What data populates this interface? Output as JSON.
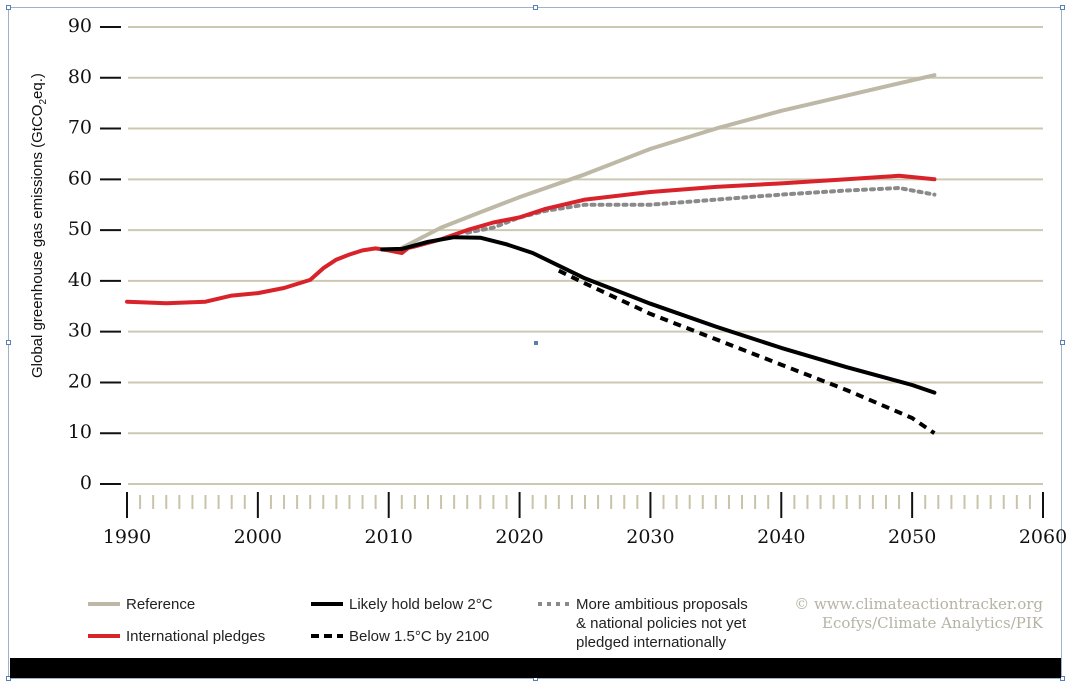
{
  "chart_data": {
    "type": "line",
    "ylabel_parts": [
      "Global greenhouse gas emissions (GtCO",
      "2",
      "eq.)"
    ],
    "ylim": [
      0,
      90
    ],
    "xlim": [
      1990,
      2060
    ],
    "yticks": [
      0,
      10,
      20,
      30,
      40,
      50,
      60,
      70,
      80,
      90
    ],
    "xticks": [
      1990,
      2000,
      2010,
      2020,
      2030,
      2040,
      2050,
      2060
    ],
    "grid": true,
    "series": [
      {
        "name": "Reference",
        "color": "#bdb9a6",
        "style": "solid",
        "x": [
          2011,
          2014,
          2017,
          2020,
          2025,
          2030,
          2035,
          2040,
          2045,
          2050,
          2051.7
        ],
        "y": [
          46.5,
          50.5,
          53.5,
          56.5,
          61,
          66,
          70,
          73.5,
          76.5,
          79.5,
          80.5
        ]
      },
      {
        "name": "International pledges",
        "color": "#d8232a",
        "style": "solid",
        "x": [
          1990,
          1993,
          1996,
          1998,
          2000,
          2002,
          2004,
          2005,
          2006,
          2007,
          2008,
          2009,
          2010,
          2011,
          2011.5,
          2012,
          2014,
          2016,
          2018,
          2020,
          2022,
          2025,
          2030,
          2035,
          2040,
          2045,
          2049,
          2051.7
        ],
        "y": [
          35.9,
          35.6,
          35.9,
          37.1,
          37.6,
          38.6,
          40.2,
          42.5,
          44.2,
          45.2,
          46,
          46.4,
          46,
          45.5,
          46.5,
          46.8,
          48.2,
          50,
          51.5,
          52.5,
          54.2,
          56,
          57.5,
          58.5,
          59.2,
          60,
          60.7,
          60
        ]
      },
      {
        "name": "Likely hold below 2°C",
        "color": "#000000",
        "style": "solid",
        "x": [
          2009.5,
          2011,
          2013,
          2015,
          2017,
          2019,
          2021,
          2023,
          2025,
          2030,
          2035,
          2040,
          2045,
          2050,
          2051.7
        ],
        "y": [
          46.2,
          46.3,
          47.7,
          48.6,
          48.5,
          47.2,
          45.5,
          43,
          40.5,
          35.5,
          31,
          26.8,
          23,
          19.5,
          18
        ]
      },
      {
        "name": "Below 1.5°C by 2100",
        "color": "#000000",
        "style": "dashed",
        "x": [
          2023,
          2025,
          2030,
          2035,
          2040,
          2045,
          2050,
          2051.7
        ],
        "y": [
          42,
          39.5,
          33.5,
          28.5,
          23.5,
          18.5,
          13,
          10
        ]
      },
      {
        "name": "More ambitious proposals & national policies not yet pledged internationally",
        "color": "#8a8a8a",
        "style": "dotted",
        "x": [
          2016,
          2018,
          2020,
          2022,
          2025,
          2030,
          2035,
          2040,
          2045,
          2049,
          2051.7
        ],
        "y": [
          49.5,
          50.5,
          52.5,
          53.8,
          55,
          55,
          56,
          57,
          57.8,
          58.3,
          57
        ]
      }
    ],
    "legend": {
      "placement": "bottom",
      "entries": [
        {
          "lines": [
            "Reference"
          ]
        },
        {
          "lines": [
            "International pledges"
          ]
        },
        {
          "lines": [
            "Likely hold below 2°C"
          ]
        },
        {
          "lines": [
            "Below 1.5°C by 2100"
          ]
        },
        {
          "lines": [
            "More ambitious proposals",
            "& national policies not yet",
            "pledged internationally"
          ]
        }
      ]
    },
    "credit": [
      "© www.climateactiontracker.org",
      "Ecofys/Climate Analytics/PIK"
    ]
  }
}
